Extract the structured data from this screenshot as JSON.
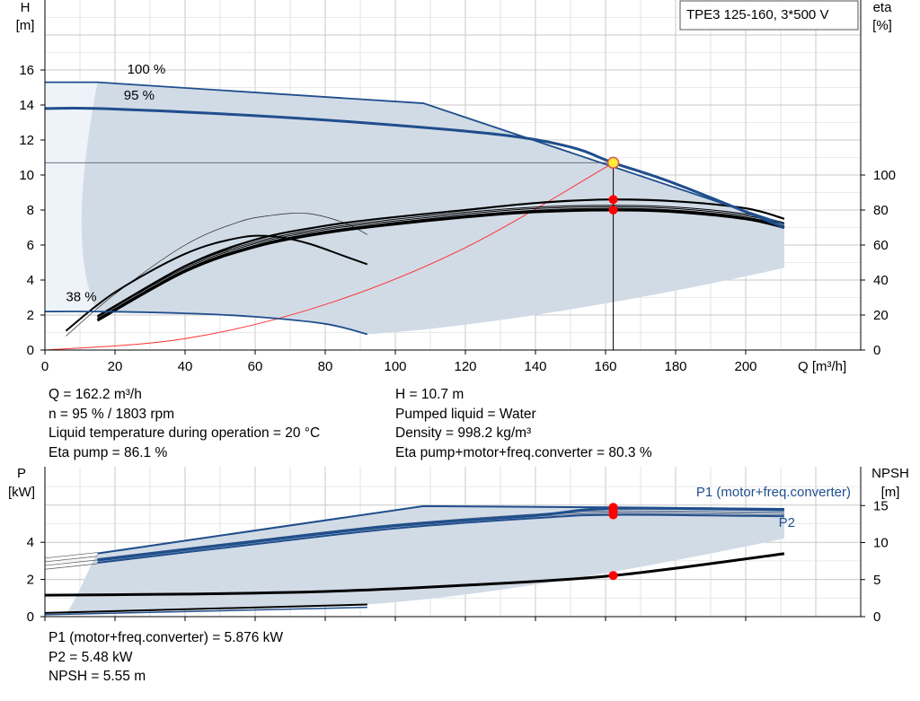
{
  "pump_label": "TPE3 125-160, 3*500 V",
  "chart_data": [
    {
      "type": "line",
      "xlabel": "Q [m³/h]",
      "ylabel_left": [
        "H",
        "[m]"
      ],
      "ylabel_right": [
        "eta",
        "[%]"
      ],
      "xlim": [
        0,
        230
      ],
      "ylim_left": [
        0,
        18
      ],
      "ylim_right": [
        0,
        180
      ],
      "x_ticks": [
        0,
        20,
        40,
        60,
        80,
        100,
        120,
        140,
        160,
        180,
        200
      ],
      "y_ticks_left": [
        0,
        2,
        4,
        6,
        8,
        10,
        12,
        14,
        16
      ],
      "y_ticks_right": [
        0,
        20,
        40,
        60,
        80,
        100
      ],
      "grid": true,
      "speed_labels": [
        {
          "text": "100 %",
          "x": 23.5,
          "y": 15.8
        },
        {
          "text": "95 %",
          "x": 22.5,
          "y": 14.3
        },
        {
          "text": "38 %",
          "x": 6,
          "y": 2.8
        }
      ],
      "duty_point": {
        "x": 162.2,
        "y": 10.7
      },
      "series": [
        {
          "role": "head-100",
          "points": [
            [
              0,
              15.3
            ],
            [
              15,
              15.3
            ],
            [
              108,
              14.1
            ],
            [
              211,
              7.2
            ]
          ]
        },
        {
          "role": "head-95",
          "points": [
            [
              0,
              13.8
            ],
            [
              15,
              13.8
            ],
            [
              50,
              13.5
            ],
            [
              90,
              13.0
            ],
            [
              130,
              12.3
            ],
            [
              150,
              11.6
            ],
            [
              162.2,
              10.7
            ],
            [
              180,
              9.5
            ],
            [
              211,
              7.0
            ]
          ]
        },
        {
          "role": "head-38",
          "points": [
            [
              0,
              2.2
            ],
            [
              15,
              2.2
            ],
            [
              40,
              2.1
            ],
            [
              60,
              1.9
            ],
            [
              80,
              1.5
            ],
            [
              92,
              0.9
            ]
          ]
        },
        {
          "role": "system-curve",
          "points": [
            [
              0,
              0
            ],
            [
              40,
              0.65
            ],
            [
              80,
              2.6
            ],
            [
              120,
              5.85
            ],
            [
              162.2,
              10.7
            ]
          ]
        },
        {
          "role": "eta-100",
          "points": [
            [
              15,
              19
            ],
            [
              40,
              48
            ],
            [
              60,
              63
            ],
            [
              80,
              71
            ],
            [
              100,
              76
            ],
            [
              120,
              80
            ],
            [
              140,
              84
            ],
            [
              160,
              86
            ],
            [
              180,
              85
            ],
            [
              200,
              81
            ],
            [
              211,
              75
            ]
          ]
        },
        {
          "role": "eta-95",
          "points": [
            [
              15,
              17
            ],
            [
              40,
              45
            ],
            [
              60,
              59
            ],
            [
              80,
              67
            ],
            [
              100,
              72
            ],
            [
              120,
              76
            ],
            [
              140,
              79
            ],
            [
              162.2,
              80
            ],
            [
              180,
              79
            ],
            [
              200,
              75
            ],
            [
              211,
              70
            ]
          ]
        },
        {
          "role": "eta-38",
          "points": [
            [
              6,
              11
            ],
            [
              20,
              33
            ],
            [
              40,
              55
            ],
            [
              55,
              64
            ],
            [
              65,
              65
            ],
            [
              75,
              61
            ],
            [
              85,
              54
            ],
            [
              92,
              49
            ]
          ]
        },
        {
          "role": "eta-low",
          "points": [
            [
              6,
              8
            ],
            [
              20,
              32
            ],
            [
              40,
              60
            ],
            [
              55,
              73
            ],
            [
              65,
              77
            ],
            [
              75,
              78
            ],
            [
              85,
              73
            ],
            [
              92,
              66
            ]
          ]
        }
      ],
      "eta_points": [
        86,
        80
      ]
    },
    {
      "type": "line",
      "xlabel": "",
      "ylabel_left": [
        "P",
        "[kW]"
      ],
      "ylabel_right": [
        "NPSH",
        "[m]"
      ],
      "xlim": [
        0,
        230
      ],
      "ylim_left": [
        0,
        6.6
      ],
      "ylim_right": [
        0,
        20
      ],
      "x_ticks": [
        0,
        20,
        40,
        60,
        80,
        100,
        120,
        140,
        160,
        180,
        200
      ],
      "y_ticks_left": [
        0,
        2,
        4
      ],
      "y_ticks_right": [
        0,
        5,
        10,
        15
      ],
      "grid": true,
      "series": [
        {
          "name": "P1 (motor+freq.converter)",
          "role": "p1",
          "points": [
            [
              15,
              3.4
            ],
            [
              108,
              5.95
            ],
            [
              162.2,
              5.88
            ],
            [
              211,
              5.8
            ]
          ]
        },
        {
          "name": "P2",
          "role": "p2",
          "points": [
            [
              15,
              2.9
            ],
            [
              60,
              3.9
            ],
            [
              100,
              4.75
            ],
            [
              140,
              5.3
            ],
            [
              162.2,
              5.48
            ],
            [
              211,
              5.4
            ]
          ]
        },
        {
          "role": "p2-b",
          "points": [
            [
              15,
              3.05
            ],
            [
              60,
              4.05
            ],
            [
              100,
              4.9
            ],
            [
              140,
              5.45
            ],
            [
              162.2,
              5.82
            ],
            [
              211,
              5.75
            ]
          ]
        },
        {
          "role": "npsh",
          "points": [
            [
              0,
              2.9
            ],
            [
              40,
              3.05
            ],
            [
              80,
              3.4
            ],
            [
              120,
              4.25
            ],
            [
              162.2,
              5.55
            ],
            [
              211,
              8.5
            ]
          ]
        },
        {
          "role": "p-low",
          "points": [
            [
              0,
              0.2
            ],
            [
              92,
              0.65
            ]
          ]
        }
      ],
      "marker_values": [
        5.876,
        5.48,
        5.55
      ]
    }
  ],
  "results_top": {
    "flow": "Q = 162.2 m³/h",
    "speed": "n = 95 % / 1803 rpm",
    "liquid_temp": "Liquid temperature during operation = 20 °C",
    "eta_pump": "Eta pump = 86.1 %",
    "head": "H = 10.7 m",
    "pumped_liquid": "Pumped liquid = Water",
    "density": "Density = 998.2 kg/m³",
    "eta_total": "Eta pump+motor+freq.converter = 80.3 %"
  },
  "results_bottom": {
    "p1": "P1 (motor+freq.converter) = 5.876 kW",
    "p2": "P2 = 5.48 kW",
    "npsh": "NPSH = 5.55 m"
  },
  "colors": {
    "curve_blue": "#1f4e8c",
    "shade": "#d1dbe6",
    "shade_light": "#eef3f9",
    "grid": "#c8c8c8",
    "system": "#ff3333",
    "marker": "#ff0000",
    "duty_fill": "#ffee33"
  }
}
